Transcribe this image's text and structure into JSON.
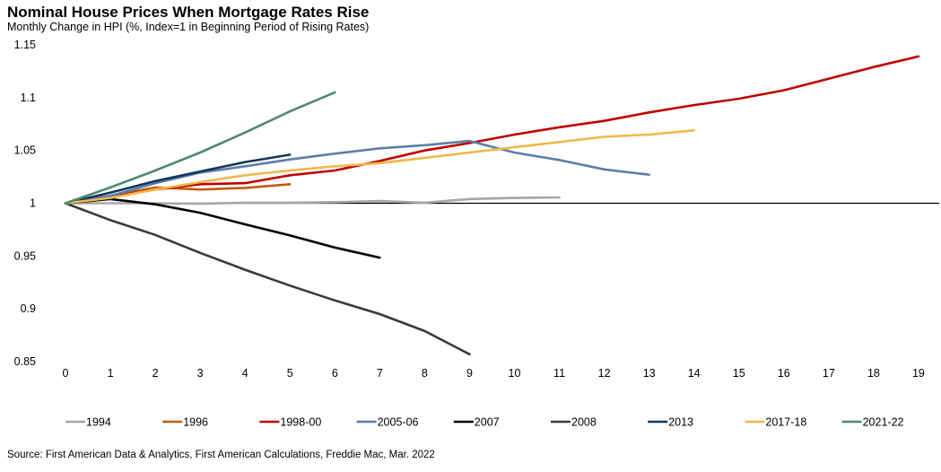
{
  "chart_data": {
    "type": "line",
    "title": "Nominal House Prices When Mortgage Rates Rise",
    "subtitle": "Monthly Change in HPI (%, Index=1  in Beginning Period of Rising Rates)",
    "xlim": [
      0,
      19
    ],
    "ylim": [
      0.85,
      1.15
    ],
    "x_ticks": [
      "0",
      "1",
      "2",
      "3",
      "4",
      "5",
      "6",
      "7",
      "8",
      "9",
      "10",
      "11",
      "12",
      "13",
      "14",
      "15",
      "16",
      "17",
      "18",
      "19"
    ],
    "y_ticks": [
      "0.85",
      "0.9",
      "0.95",
      "1",
      "1.05",
      "1.1",
      "1.15"
    ],
    "grid": false,
    "legend_position": "bottom",
    "series": [
      {
        "name": "1994",
        "color": "#a6a6a6",
        "values": [
          1.0,
          1.0,
          1.0,
          0.9995,
          1.0005,
          1.0005,
          1.001,
          1.002,
          1.0005,
          1.004,
          1.005,
          1.0055
        ]
      },
      {
        "name": "1996",
        "color": "#c55a11",
        "values": [
          1.0,
          1.007,
          1.015,
          1.013,
          1.0145,
          1.018
        ]
      },
      {
        "name": "1998-00",
        "color": "#c00000",
        "values": [
          1.0,
          1.006,
          1.013,
          1.018,
          1.019,
          1.0265,
          1.031,
          1.04,
          1.05,
          1.057,
          1.065,
          1.072,
          1.078,
          1.086,
          1.093,
          1.099,
          1.107,
          1.118,
          1.129,
          1.139
        ]
      },
      {
        "name": "2005-06",
        "color": "#5b7fa6",
        "values": [
          1.0,
          1.007,
          1.019,
          1.029,
          1.035,
          1.0415,
          1.047,
          1.052,
          1.055,
          1.059,
          1.048,
          1.041,
          1.032,
          1.027
        ]
      },
      {
        "name": "2007",
        "color": "#000000",
        "values": [
          1.0,
          1.004,
          0.999,
          0.991,
          0.98,
          0.9695,
          0.958,
          0.9485
        ]
      },
      {
        "name": "2008",
        "color": "#3a3a3a",
        "values": [
          1.0,
          0.984,
          0.97,
          0.953,
          0.937,
          0.922,
          0.908,
          0.895,
          0.879,
          0.857
        ]
      },
      {
        "name": "2013",
        "color": "#14375e",
        "values": [
          1.0,
          1.01,
          1.021,
          1.03,
          1.039,
          1.046
        ]
      },
      {
        "name": "2017-18",
        "color": "#f0b84a",
        "values": [
          1.0,
          1.005,
          1.013,
          1.02,
          1.0265,
          1.031,
          1.035,
          1.038,
          1.043,
          1.048,
          1.053,
          1.058,
          1.063,
          1.065,
          1.069
        ]
      },
      {
        "name": "2021-22",
        "color": "#4e8a6e",
        "values": [
          1.0,
          1.015,
          1.031,
          1.048,
          1.067,
          1.087,
          1.105
        ]
      }
    ]
  },
  "source": "Source: First American Data & Analytics, First American Calculations, Freddie Mac, Mar. 2022"
}
